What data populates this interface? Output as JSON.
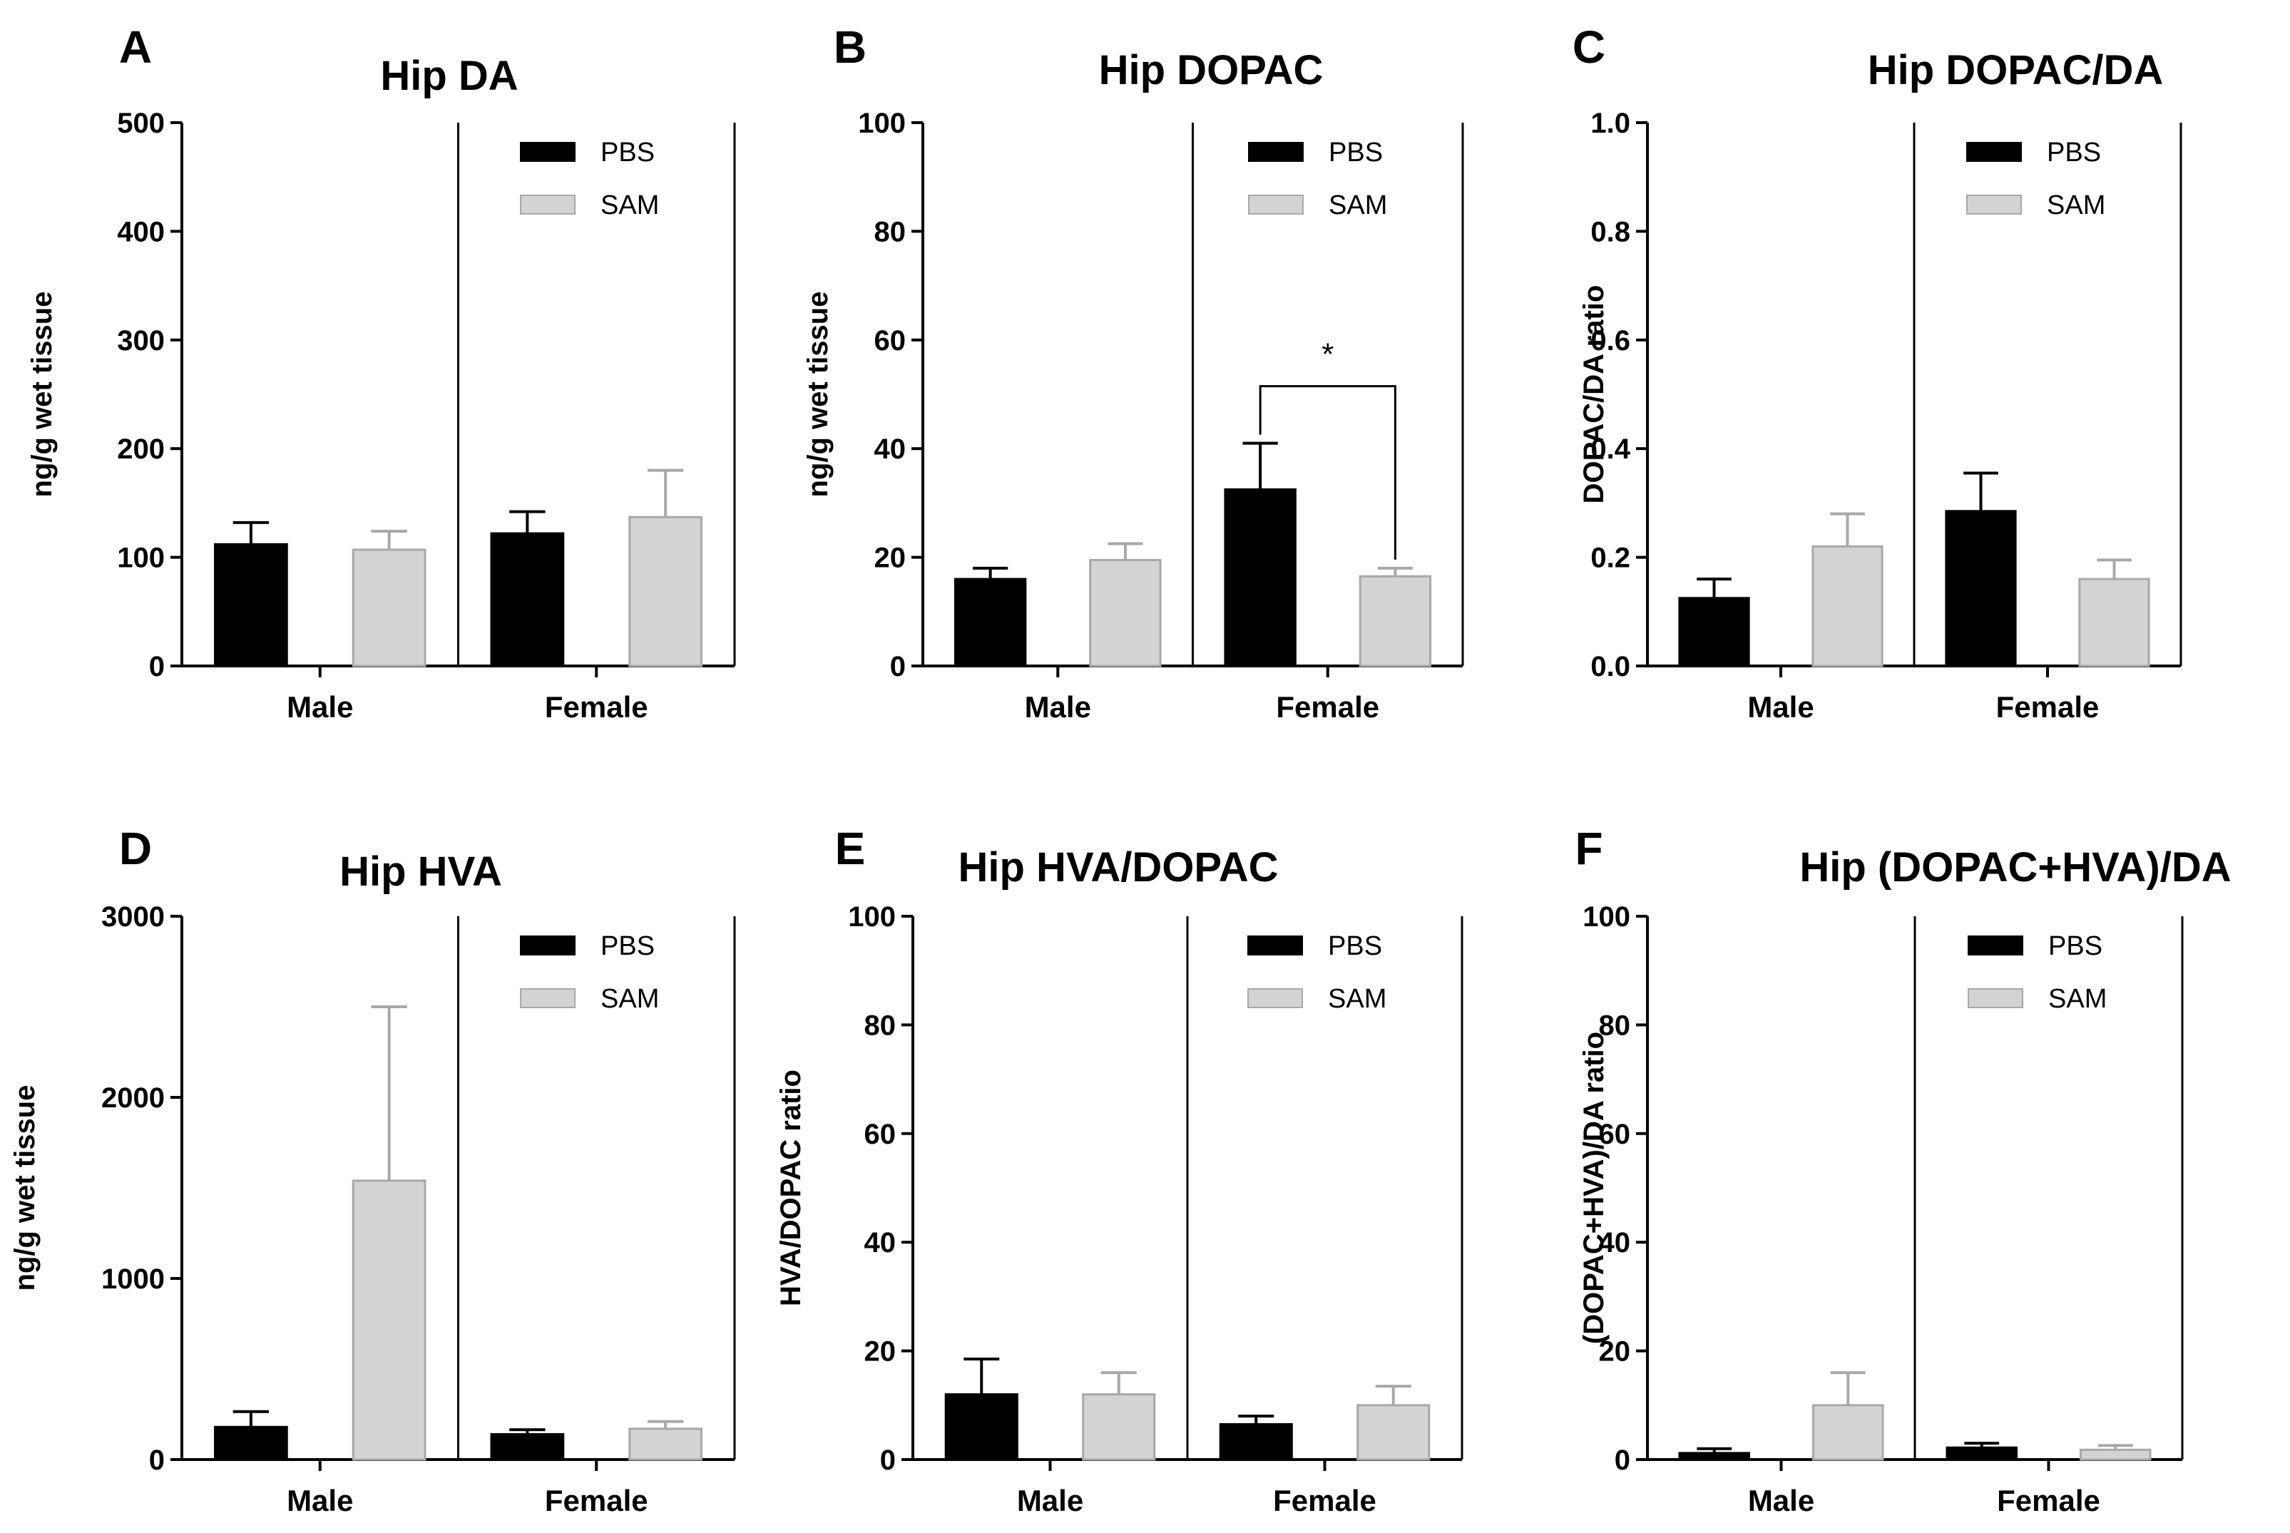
{
  "chart_data": [
    {
      "panel": "A",
      "type": "bar",
      "title": "Hip DA",
      "ylabel": "ng/g wet tissue",
      "ylim": [
        0,
        500
      ],
      "yticks": [
        "0",
        "100",
        "200",
        "300",
        "400",
        "500"
      ],
      "categories": [
        "Male",
        "Female"
      ],
      "series": [
        {
          "name": "PBS",
          "color": "#000000",
          "values": [
            112,
            122
          ],
          "errors": [
            20,
            20
          ]
        },
        {
          "name": "SAM",
          "color": "#d3d3d3",
          "values": [
            107,
            137
          ],
          "errors": [
            17,
            43
          ]
        }
      ],
      "legend": "top-right"
    },
    {
      "panel": "B",
      "type": "bar",
      "title": "Hip DOPAC",
      "ylabel": "ng/g wet tissue",
      "ylim": [
        0,
        100
      ],
      "yticks": [
        "0",
        "20",
        "40",
        "60",
        "80",
        "100"
      ],
      "categories": [
        "Male",
        "Female"
      ],
      "series": [
        {
          "name": "PBS",
          "color": "#000000",
          "values": [
            16,
            32.5
          ],
          "errors": [
            2,
            8.5
          ]
        },
        {
          "name": "SAM",
          "color": "#d3d3d3",
          "values": [
            19.5,
            16.5
          ],
          "errors": [
            3,
            1.5
          ]
        }
      ],
      "legend": "top-right",
      "significance": {
        "category": "Female",
        "label": "*",
        "bracket_value": 51.5
      }
    },
    {
      "panel": "C",
      "type": "bar",
      "title": "Hip DOPAC/DA",
      "ylabel": "DOPAC/DA ratio",
      "ylim": [
        0,
        1.0
      ],
      "yticks": [
        "0.0",
        "0.2",
        "0.4",
        "0.6",
        "0.8",
        "1.0"
      ],
      "categories": [
        "Male",
        "Female"
      ],
      "series": [
        {
          "name": "PBS",
          "color": "#000000",
          "values": [
            0.125,
            0.285
          ],
          "errors": [
            0.035,
            0.07
          ]
        },
        {
          "name": "SAM",
          "color": "#d3d3d3",
          "values": [
            0.22,
            0.16
          ],
          "errors": [
            0.06,
            0.035
          ]
        }
      ],
      "legend": "top-right"
    },
    {
      "panel": "D",
      "type": "bar",
      "title": "Hip HVA",
      "ylabel": "ng/g wet tissue",
      "ylim": [
        0,
        3000
      ],
      "yticks": [
        "0",
        "1000",
        "2000",
        "3000"
      ],
      "categories": [
        "Male",
        "Female"
      ],
      "series": [
        {
          "name": "PBS",
          "color": "#000000",
          "values": [
            180,
            140
          ],
          "errors": [
            85,
            25
          ]
        },
        {
          "name": "SAM",
          "color": "#d3d3d3",
          "values": [
            1540,
            170
          ],
          "errors": [
            960,
            40
          ]
        }
      ],
      "legend": "top-right"
    },
    {
      "panel": "E",
      "type": "bar",
      "title": "Hip HVA/DOPAC",
      "ylabel": "HVA/DOPAC ratio",
      "ylim": [
        0,
        100
      ],
      "yticks": [
        "0",
        "20",
        "40",
        "60",
        "80",
        "100"
      ],
      "categories": [
        "Male",
        "Female"
      ],
      "series": [
        {
          "name": "PBS",
          "color": "#000000",
          "values": [
            12,
            6.5
          ],
          "errors": [
            6.5,
            1.5
          ]
        },
        {
          "name": "SAM",
          "color": "#d3d3d3",
          "values": [
            12,
            10
          ],
          "errors": [
            4,
            3.5
          ]
        }
      ],
      "legend": "top-right"
    },
    {
      "panel": "F",
      "type": "bar",
      "title": "Hip (DOPAC+HVA)/DA",
      "ylabel": "(DOPAC+HVA)/DA ratio",
      "ylim": [
        0,
        100
      ],
      "yticks": [
        "0",
        "20",
        "40",
        "60",
        "80",
        "100"
      ],
      "categories": [
        "Male",
        "Female"
      ],
      "series": [
        {
          "name": "PBS",
          "color": "#000000",
          "values": [
            1.2,
            2.2
          ],
          "errors": [
            0.8,
            0.8
          ]
        },
        {
          "name": "SAM",
          "color": "#d3d3d3",
          "values": [
            10,
            1.8
          ],
          "errors": [
            6,
            0.8
          ]
        }
      ],
      "legend": "top-right"
    }
  ]
}
